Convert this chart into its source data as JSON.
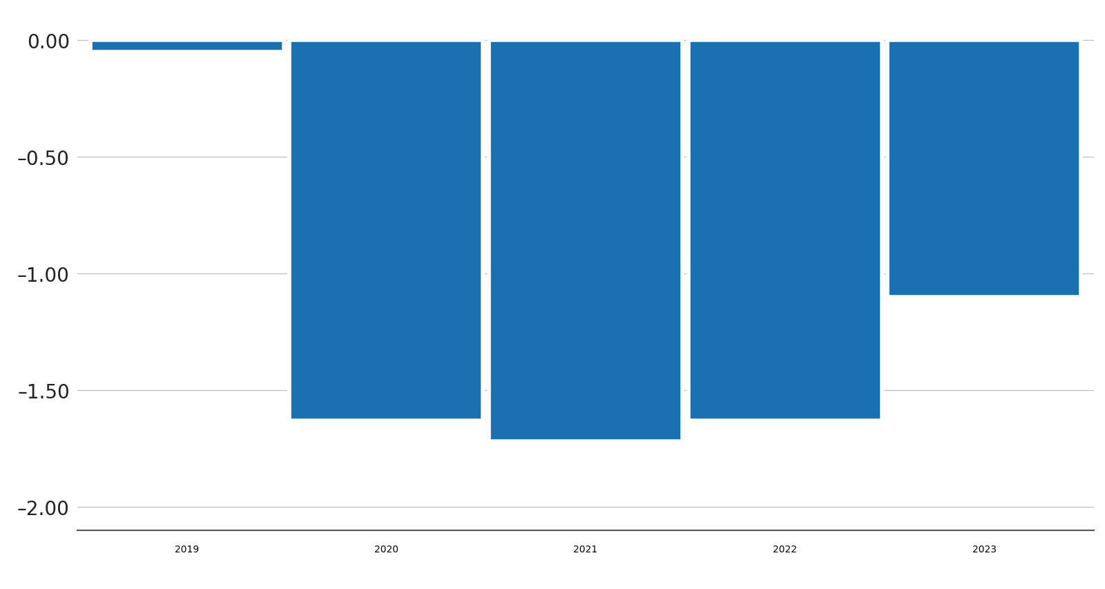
{
  "categories": [
    "2019",
    "2020",
    "2021",
    "2022",
    "2023"
  ],
  "values": [
    -0.05,
    -1.63,
    -1.72,
    -1.63,
    -1.1
  ],
  "bar_color": "#1a6faf",
  "bar_width": 0.97,
  "ylim": [
    -2.1,
    0.1
  ],
  "yticks": [
    0.0,
    -0.5,
    -1.0,
    -1.5,
    -2.0
  ],
  "ytick_labels": [
    "0.00",
    "–0.50",
    "–1.00",
    "–1.50",
    "–2.00"
  ],
  "background_color": "#ffffff",
  "grid_color": "#bbbbbb",
  "spine_color": "#555555",
  "tick_fontsize": 20,
  "xtick_fontsize": 22
}
